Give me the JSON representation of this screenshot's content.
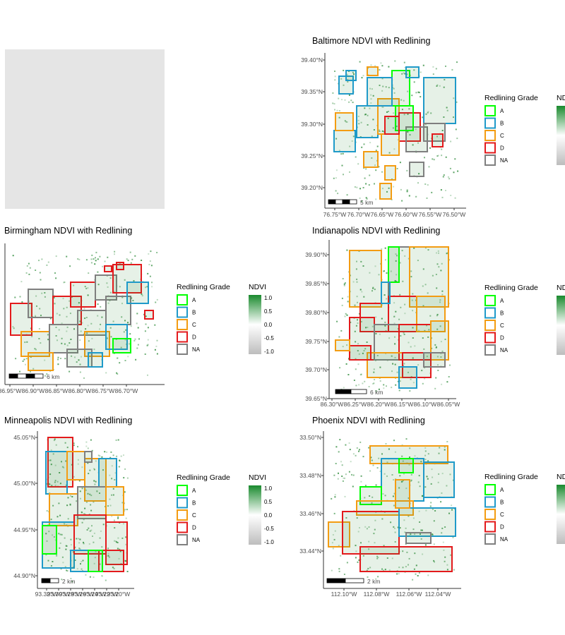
{
  "page": {
    "background": "#ffffff",
    "empty_panel_color": "#e5e5e5"
  },
  "legend": {
    "grade_title": "Redlining Grade",
    "grades": [
      {
        "label": "A",
        "color": "#00ff00"
      },
      {
        "label": "B",
        "color": "#1f9ac9"
      },
      {
        "label": "C",
        "color": "#f39c12"
      },
      {
        "label": "D",
        "color": "#e31a1c"
      },
      {
        "label": "NA",
        "color": "#7f7f7f"
      }
    ],
    "ndvi_title": "NDVI",
    "ndvi_ticks": [
      "1.0",
      "0.5",
      "0.0",
      "-0.5",
      "-1.0"
    ],
    "ndvi_colors": {
      "high": "#1a8a2e",
      "mid": "#ffffff",
      "low": "#bdbdbd"
    }
  },
  "chart_data": [
    {
      "type": "map",
      "title": "Baltimore  NDVI with Redlining",
      "x_ticks": [
        "76.75°W",
        "76.70°W",
        "76.65°W",
        "76.60°W",
        "76.55°W",
        "76.50°W"
      ],
      "y_ticks": [
        "39.40°N",
        "39.35°N",
        "39.30°N",
        "39.25°N",
        "39.20°N"
      ],
      "scalebar": "5 km",
      "show_ndvi_ticks": false
    },
    {
      "type": "map",
      "title": "Birmingham  NDVI with Redlining",
      "x_ticks": [
        "86.95°W",
        "86.90°W",
        "86.85°W",
        "86.80°W",
        "86.75°W",
        "86.70°W"
      ],
      "y_ticks": [],
      "scalebar": "6 km",
      "show_ndvi_ticks": true
    },
    {
      "type": "map",
      "title": "Indianapolis  NDVI with Redlining",
      "x_ticks": [
        "86.30°W",
        "86.25°W",
        "86.20°W",
        "86.15°W",
        "86.10°W",
        "86.05°W"
      ],
      "y_ticks": [
        "39.90°N",
        "39.85°N",
        "39.80°N",
        "39.75°N",
        "39.70°N",
        "39.65°N"
      ],
      "scalebar": "6 km",
      "show_ndvi_ticks": false
    },
    {
      "type": "map",
      "title": "Minneapolis  NDVI with Redlining",
      "x_ticks": [
        "93.32°W",
        "93.30°W",
        "93.28°W",
        "93.26°W",
        "93.24°W",
        "93.22°W",
        "93.20°W"
      ],
      "y_ticks": [
        "45.05°N",
        "45.00°N",
        "44.95°N",
        "44.90°N"
      ],
      "scalebar": "2 km",
      "show_ndvi_ticks": true
    },
    {
      "type": "map",
      "title": "Phoenix  NDVI with Redlining",
      "x_ticks": [
        "112.10°W",
        "112.08°W",
        "112.06°W",
        "112.04°W"
      ],
      "y_ticks": [
        "33.50°N",
        "33.48°N",
        "33.46°N",
        "33.44°N"
      ],
      "scalebar": "2 km",
      "show_ndvi_ticks": false
    }
  ]
}
